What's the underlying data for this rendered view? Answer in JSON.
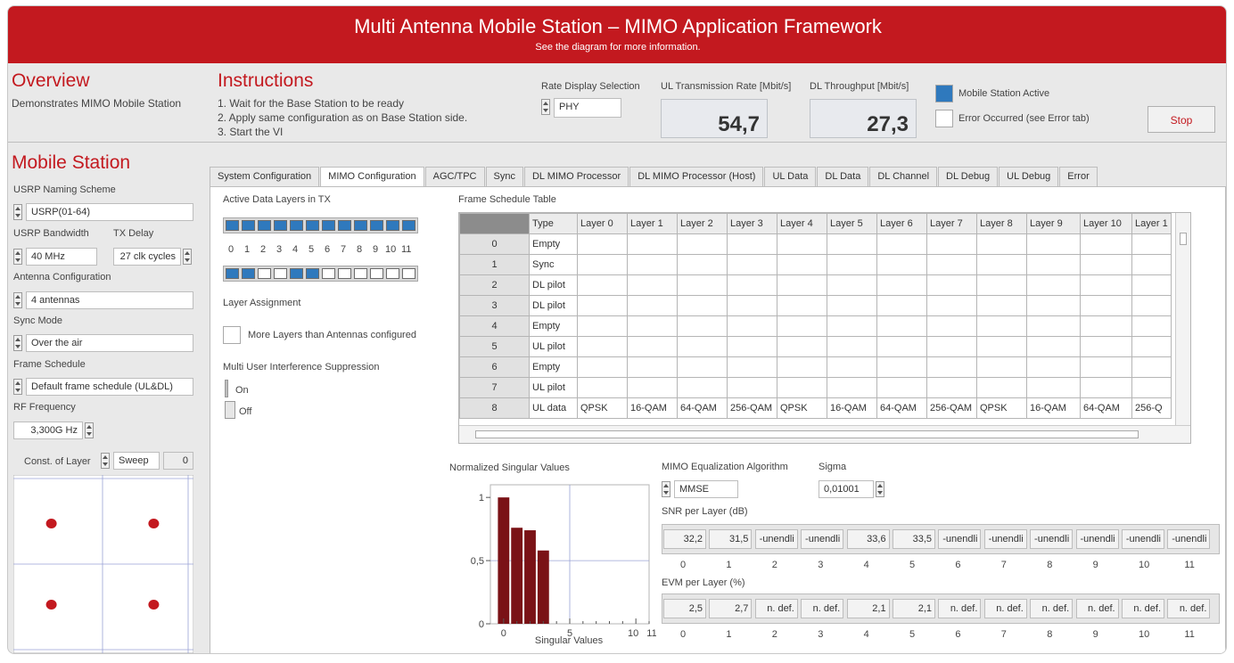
{
  "header": {
    "title": "Multi Antenna Mobile Station – MIMO Application Framework",
    "subtitle": "See the diagram for more information."
  },
  "overview": {
    "title": "Overview",
    "description": "Demonstrates MIMO Mobile Station"
  },
  "instructions": {
    "title": "Instructions",
    "steps": [
      "1. Wait for the Base Station to be ready",
      "2. Apply same configuration as on Base Station side.",
      "3. Start the VI"
    ]
  },
  "rate_display": {
    "label": "Rate Display Selection",
    "value": "PHY"
  },
  "ul_rate": {
    "label": "UL Transmission Rate [Mbit/s]",
    "value": "54,7"
  },
  "dl_throughput": {
    "label": "DL Throughput [Mbit/s]",
    "value": "27,3"
  },
  "status": {
    "mobile_active": {
      "label": "Mobile Station Active",
      "checked": true
    },
    "error": {
      "label": "Error Occurred (see Error tab)",
      "checked": false
    },
    "stop_label": "Stop"
  },
  "sidebar": {
    "title": "Mobile Station",
    "naming_label": "USRP Naming Scheme",
    "naming_value": "USRP(01-64)",
    "bandwidth_label": "USRP Bandwidth",
    "bandwidth_value": "40 MHz",
    "txdelay_label": "TX Delay",
    "txdelay_value": "27 clk cycles",
    "antenna_label": "Antenna Configuration",
    "antenna_value": "4 antennas",
    "sync_label": "Sync Mode",
    "sync_value": "Over the air",
    "frame_label": "Frame Schedule",
    "frame_value": "Default frame schedule (UL&DL)",
    "rf_label": "RF Frequency",
    "rf_value": "3,300G Hz",
    "const_label": "Const. of Layer",
    "sweep_label": "Sweep",
    "const_value": "0"
  },
  "constellation": {
    "points": [
      [
        -0.7,
        0.7
      ],
      [
        0.7,
        0.7
      ],
      [
        -0.7,
        -0.7
      ],
      [
        0.7,
        -0.7
      ]
    ]
  },
  "tabs": [
    "System Configuration",
    "MIMO Configuration",
    "AGC/TPC",
    "Sync",
    "DL MIMO Processor",
    "DL MIMO Processor (Host)",
    "UL Data",
    "DL Data",
    "DL Channel",
    "DL Debug",
    "UL Debug",
    "Error"
  ],
  "active_tab": 1,
  "mimo": {
    "active_layers_label": "Active Data Layers in TX",
    "tx_layers": [
      1,
      1,
      1,
      1,
      1,
      1,
      1,
      1,
      1,
      1,
      1,
      1
    ],
    "layer_numbers": [
      "0",
      "1",
      "2",
      "3",
      "4",
      "5",
      "6",
      "7",
      "8",
      "9",
      "10",
      "11"
    ],
    "assignment": [
      1,
      1,
      0,
      0,
      1,
      1,
      0,
      0,
      0,
      0,
      0,
      0
    ],
    "assignment_label": "Layer Assignment",
    "more_layers_label": "More Layers than Antennas configured",
    "mui_label": "Multi User Interference Suppression",
    "on_label": "On",
    "off_label": "Off"
  },
  "frame_table": {
    "title": "Frame Schedule Table",
    "columns": [
      "Type",
      "Layer 0",
      "Layer 1",
      "Layer 2",
      "Layer 3",
      "Layer 4",
      "Layer 5",
      "Layer 6",
      "Layer 7",
      "Layer 8",
      "Layer 9",
      "Layer 10",
      "Layer 1"
    ],
    "rows": [
      [
        "0",
        "Empty",
        "",
        "",
        "",
        "",
        "",
        "",
        "",
        "",
        "",
        "",
        "",
        ""
      ],
      [
        "1",
        "Sync",
        "",
        "",
        "",
        "",
        "",
        "",
        "",
        "",
        "",
        "",
        "",
        ""
      ],
      [
        "2",
        "DL pilot",
        "",
        "",
        "",
        "",
        "",
        "",
        "",
        "",
        "",
        "",
        "",
        ""
      ],
      [
        "3",
        "DL pilot",
        "",
        "",
        "",
        "",
        "",
        "",
        "",
        "",
        "",
        "",
        "",
        ""
      ],
      [
        "4",
        "Empty",
        "",
        "",
        "",
        "",
        "",
        "",
        "",
        "",
        "",
        "",
        "",
        ""
      ],
      [
        "5",
        "UL pilot",
        "",
        "",
        "",
        "",
        "",
        "",
        "",
        "",
        "",
        "",
        "",
        ""
      ],
      [
        "6",
        "Empty",
        "",
        "",
        "",
        "",
        "",
        "",
        "",
        "",
        "",
        "",
        "",
        ""
      ],
      [
        "7",
        "UL pilot",
        "",
        "",
        "",
        "",
        "",
        "",
        "",
        "",
        "",
        "",
        "",
        ""
      ],
      [
        "8",
        "UL data",
        "QPSK",
        "16-QAM",
        "64-QAM",
        "256-QAM",
        "QPSK",
        "16-QAM",
        "64-QAM",
        "256-QAM",
        "QPSK",
        "16-QAM",
        "64-QAM",
        "256-Q"
      ]
    ]
  },
  "chart_data": {
    "type": "bar",
    "title": "Normalized Singular Values",
    "xlabel": "Singular Values",
    "x": [
      0,
      1,
      2,
      3
    ],
    "values": [
      1.0,
      0.76,
      0.74,
      0.58
    ],
    "xlim": [
      -1,
      11
    ],
    "ylim": [
      0,
      1.1
    ],
    "xticks": [
      "0",
      "5",
      "10",
      "11"
    ],
    "yticks": [
      "0",
      "0,5",
      "1"
    ],
    "grid": true
  },
  "equalization": {
    "label": "MIMO Equalization Algorithm",
    "value": "MMSE"
  },
  "sigma": {
    "label": "Sigma",
    "value": "0,01001"
  },
  "snr": {
    "label": "SNR per Layer (dB)",
    "values": [
      "32,2",
      "31,5",
      "-unendli",
      "-unendli",
      "33,6",
      "33,5",
      "-unendli",
      "-unendli",
      "-unendli",
      "-unendli",
      "-unendli",
      "-unendli"
    ],
    "indices": [
      "0",
      "1",
      "2",
      "3",
      "4",
      "5",
      "6",
      "7",
      "8",
      "9",
      "10",
      "11"
    ]
  },
  "evm": {
    "label": "EVM per Layer (%)",
    "values": [
      "2,5",
      "2,7",
      "n. def.",
      "n. def.",
      "2,1",
      "2,1",
      "n. def.",
      "n. def.",
      "n. def.",
      "n. def.",
      "n. def.",
      "n. def."
    ],
    "indices": [
      "0",
      "1",
      "2",
      "3",
      "4",
      "5",
      "6",
      "7",
      "8",
      "9",
      "10",
      "11"
    ]
  },
  "colors": {
    "accent": "#c3191f",
    "led_on": "#2f79bd",
    "bar": "#7a1216"
  }
}
